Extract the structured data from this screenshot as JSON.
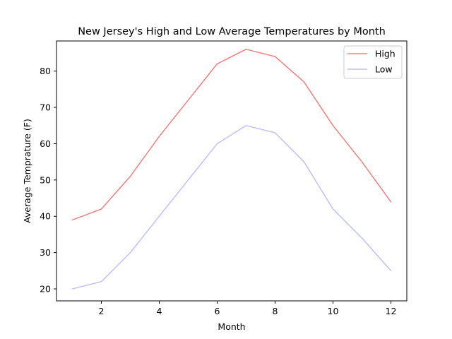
{
  "chart_data": {
    "type": "line",
    "title": "New Jersey's High and Low Average Temperatures by Month",
    "xlabel": "Month",
    "ylabel": "Average Temprature (F)",
    "x": [
      1,
      2,
      3,
      4,
      5,
      6,
      7,
      8,
      9,
      10,
      11,
      12
    ],
    "xlim": [
      0.45,
      12.55
    ],
    "ylim": [
      16.7,
      88.3
    ],
    "xticks": [
      2,
      4,
      6,
      8,
      10,
      12
    ],
    "yticks": [
      20,
      30,
      40,
      50,
      60,
      70,
      80
    ],
    "grid": false,
    "legend": "top-right",
    "series": [
      {
        "name": "High",
        "color": "#f08080",
        "values": [
          39,
          42,
          51,
          62,
          72,
          82,
          86,
          84,
          77,
          65,
          55,
          44
        ]
      },
      {
        "name": "Low",
        "color": "#c0c0ff",
        "values": [
          20,
          22,
          30,
          40,
          50,
          60,
          65,
          63,
          55,
          42,
          34,
          25
        ]
      }
    ]
  }
}
